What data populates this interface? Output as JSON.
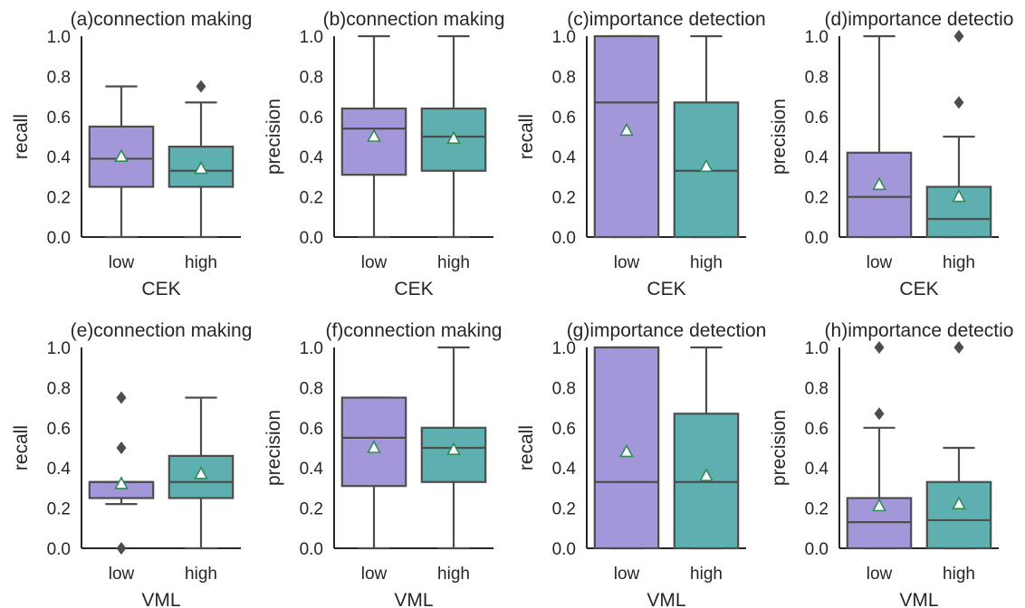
{
  "colors": {
    "low": "#a497d9",
    "high": "#5eafaf",
    "mean_marker": "#2e8b57",
    "box_edge": "#4d4d4d",
    "axes": "#262626"
  },
  "chart_data": [
    {
      "type": "box",
      "title": "(a)connection making",
      "xlabel": "CEK",
      "ylabel": "recall",
      "ylim": [
        0.0,
        1.0
      ],
      "yticks": [
        "0.0",
        "0.2",
        "0.4",
        "0.6",
        "0.8",
        "1.0"
      ],
      "categories": [
        "low",
        "high"
      ],
      "boxes": [
        {
          "q1": 0.25,
          "median": 0.39,
          "q3": 0.55,
          "whisker_low": 0.0,
          "whisker_high": 0.75,
          "mean": 0.4,
          "outliers": []
        },
        {
          "q1": 0.25,
          "median": 0.33,
          "q3": 0.45,
          "whisker_low": 0.0,
          "whisker_high": 0.67,
          "mean": 0.34,
          "outliers": [
            0.75
          ]
        }
      ]
    },
    {
      "type": "box",
      "title": "(b)connection making",
      "xlabel": "CEK",
      "ylabel": "precision",
      "ylim": [
        0.0,
        1.0
      ],
      "yticks": [
        "0.0",
        "0.2",
        "0.4",
        "0.6",
        "0.8",
        "1.0"
      ],
      "categories": [
        "low",
        "high"
      ],
      "boxes": [
        {
          "q1": 0.31,
          "median": 0.54,
          "q3": 0.64,
          "whisker_low": 0.0,
          "whisker_high": 1.0,
          "mean": 0.5,
          "outliers": []
        },
        {
          "q1": 0.33,
          "median": 0.5,
          "q3": 0.64,
          "whisker_low": 0.0,
          "whisker_high": 1.0,
          "mean": 0.49,
          "outliers": []
        }
      ]
    },
    {
      "type": "box",
      "title": "(c)importance detection",
      "xlabel": "CEK",
      "ylabel": "recall",
      "ylim": [
        0.0,
        1.0
      ],
      "yticks": [
        "0.0",
        "0.2",
        "0.4",
        "0.6",
        "0.8",
        "1.0"
      ],
      "categories": [
        "low",
        "high"
      ],
      "boxes": [
        {
          "q1": 0.0,
          "median": 0.67,
          "q3": 1.0,
          "whisker_low": 0.0,
          "whisker_high": 1.0,
          "mean": 0.53,
          "outliers": []
        },
        {
          "q1": 0.0,
          "median": 0.33,
          "q3": 0.67,
          "whisker_low": 0.0,
          "whisker_high": 1.0,
          "mean": 0.35,
          "outliers": []
        }
      ]
    },
    {
      "type": "box",
      "title": "(d)importance detectio",
      "xlabel": "CEK",
      "ylabel": "precision",
      "ylim": [
        0.0,
        1.0
      ],
      "yticks": [
        "0.0",
        "0.2",
        "0.4",
        "0.6",
        "0.8",
        "1.0"
      ],
      "categories": [
        "low",
        "high"
      ],
      "boxes": [
        {
          "q1": 0.0,
          "median": 0.2,
          "q3": 0.42,
          "whisker_low": 0.0,
          "whisker_high": 1.0,
          "mean": 0.26,
          "outliers": []
        },
        {
          "q1": 0.0,
          "median": 0.09,
          "q3": 0.25,
          "whisker_low": 0.0,
          "whisker_high": 0.5,
          "mean": 0.2,
          "outliers": [
            0.67,
            1.0
          ]
        }
      ]
    },
    {
      "type": "box",
      "title": "(e)connection making",
      "xlabel": "VML",
      "ylabel": "recall",
      "ylim": [
        0.0,
        1.0
      ],
      "yticks": [
        "0.0",
        "0.2",
        "0.4",
        "0.6",
        "0.8",
        "1.0"
      ],
      "categories": [
        "low",
        "high"
      ],
      "boxes": [
        {
          "q1": 0.25,
          "median": 0.33,
          "q3": 0.33,
          "whisker_low": 0.22,
          "whisker_high": 0.33,
          "mean": 0.32,
          "outliers": [
            0.0,
            0.5,
            0.75
          ]
        },
        {
          "q1": 0.25,
          "median": 0.33,
          "q3": 0.46,
          "whisker_low": 0.0,
          "whisker_high": 0.75,
          "mean": 0.37,
          "outliers": []
        }
      ]
    },
    {
      "type": "box",
      "title": "(f)connection making",
      "xlabel": "VML",
      "ylabel": "precision",
      "ylim": [
        0.0,
        1.0
      ],
      "yticks": [
        "0.0",
        "0.2",
        "0.4",
        "0.6",
        "0.8",
        "1.0"
      ],
      "categories": [
        "low",
        "high"
      ],
      "boxes": [
        {
          "q1": 0.31,
          "median": 0.55,
          "q3": 0.75,
          "whisker_low": 0.0,
          "whisker_high": 0.75,
          "mean": 0.5,
          "outliers": []
        },
        {
          "q1": 0.33,
          "median": 0.5,
          "q3": 0.6,
          "whisker_low": 0.0,
          "whisker_high": 1.0,
          "mean": 0.49,
          "outliers": []
        }
      ]
    },
    {
      "type": "box",
      "title": "(g)importance detection",
      "xlabel": "VML",
      "ylabel": "recall",
      "ylim": [
        0.0,
        1.0
      ],
      "yticks": [
        "0.0",
        "0.2",
        "0.4",
        "0.6",
        "0.8",
        "1.0"
      ],
      "categories": [
        "low",
        "high"
      ],
      "boxes": [
        {
          "q1": 0.0,
          "median": 0.33,
          "q3": 1.0,
          "whisker_low": 0.0,
          "whisker_high": 1.0,
          "mean": 0.48,
          "outliers": []
        },
        {
          "q1": 0.0,
          "median": 0.33,
          "q3": 0.67,
          "whisker_low": 0.0,
          "whisker_high": 1.0,
          "mean": 0.36,
          "outliers": []
        }
      ]
    },
    {
      "type": "box",
      "title": "(h)importance detectio",
      "xlabel": "VML",
      "ylabel": "precision",
      "ylim": [
        0.0,
        1.0
      ],
      "yticks": [
        "0.0",
        "0.2",
        "0.4",
        "0.6",
        "0.8",
        "1.0"
      ],
      "categories": [
        "low",
        "high"
      ],
      "boxes": [
        {
          "q1": 0.0,
          "median": 0.13,
          "q3": 0.25,
          "whisker_low": 0.0,
          "whisker_high": 0.6,
          "mean": 0.21,
          "outliers": [
            0.67,
            1.0
          ]
        },
        {
          "q1": 0.0,
          "median": 0.14,
          "q3": 0.33,
          "whisker_low": 0.0,
          "whisker_high": 0.5,
          "mean": 0.22,
          "outliers": [
            1.0
          ]
        }
      ]
    }
  ]
}
